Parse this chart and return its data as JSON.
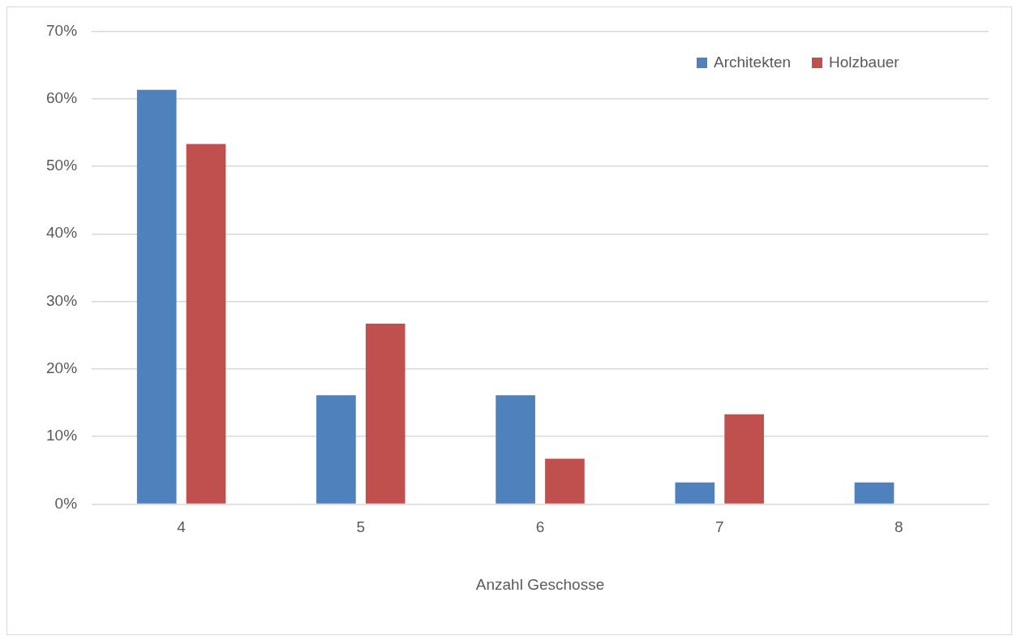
{
  "chart_data": {
    "type": "bar",
    "xlabel": "Anzahl Geschosse",
    "categories": [
      "4",
      "5",
      "6",
      "7",
      "8"
    ],
    "series": [
      {
        "name": "Architekten",
        "color": "#4f81bd",
        "values": [
          61.3,
          16.1,
          16.1,
          3.2,
          3.2
        ]
      },
      {
        "name": "Holzbauer",
        "color": "#c0504d",
        "values": [
          53.3,
          26.7,
          6.7,
          13.3,
          0
        ]
      }
    ],
    "ylim": [
      0,
      70
    ],
    "yticks": [
      {
        "value": 0,
        "label": "0%"
      },
      {
        "value": 10,
        "label": "10%"
      },
      {
        "value": 20,
        "label": "20%"
      },
      {
        "value": 30,
        "label": "30%"
      },
      {
        "value": 40,
        "label": "40%"
      },
      {
        "value": 50,
        "label": "50%"
      },
      {
        "value": 60,
        "label": "60%"
      },
      {
        "value": 70,
        "label": "70%"
      }
    ],
    "grid": "y",
    "legend": "top right"
  }
}
